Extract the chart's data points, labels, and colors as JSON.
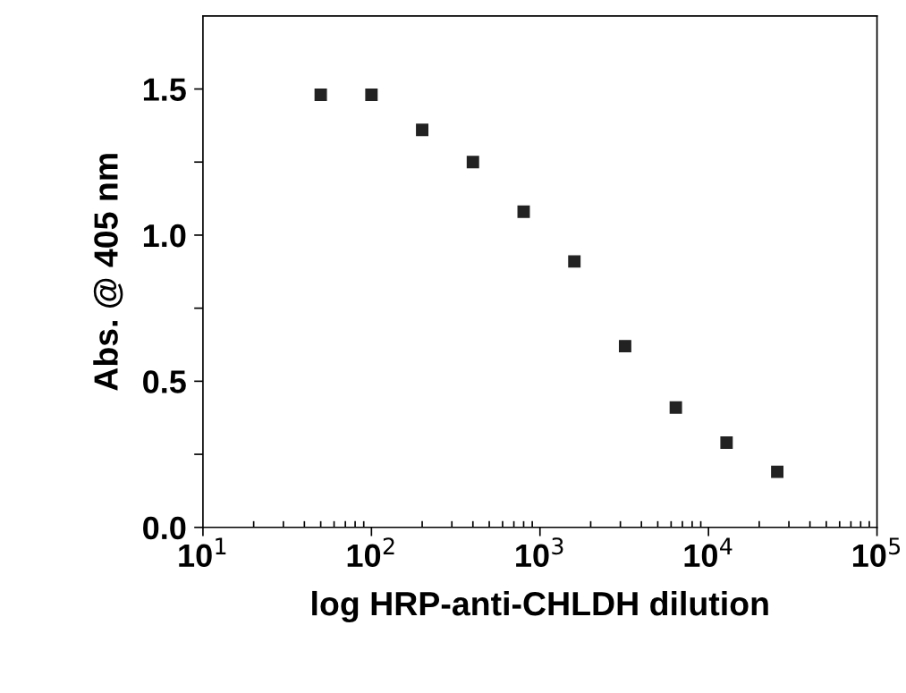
{
  "chart_data": {
    "type": "scatter",
    "xlabel": "log HRP-anti-CHLDH dilution",
    "ylabel": "Abs. @ 405 nm",
    "x": [
      50,
      100,
      200,
      400,
      800,
      1600,
      3200,
      6400,
      12800,
      25600
    ],
    "series": [
      {
        "color": "#222222",
        "values": [
          1.48,
          1.48,
          1.36,
          1.25,
          1.08,
          0.91,
          0.62,
          0.41,
          0.29,
          0.19
        ]
      }
    ],
    "log": "x",
    "marker": "square",
    "grid": false,
    "legend": false,
    "xlim": [
      10,
      100000
    ],
    "xticks": [
      {
        "value": 10,
        "label": "10$^{1}$"
      },
      {
        "value": 100,
        "label": "10$^{2}$"
      },
      {
        "value": 1000,
        "label": "10$^{3}$"
      },
      {
        "value": 10000,
        "label": "10$^{4}$"
      },
      {
        "value": 100000,
        "label": "10$^{5}$"
      }
    ],
    "ylim": [
      0,
      1.75
    ],
    "yticks": [
      {
        "value": 0,
        "label": "0.0"
      },
      {
        "value": 0.25,
        "label": null
      },
      {
        "value": 0.5,
        "label": "0.5"
      },
      {
        "value": 0.75,
        "label": null
      },
      {
        "value": 1.0,
        "label": "1.0"
      },
      {
        "value": 1.25,
        "label": null
      },
      {
        "value": 1.5,
        "label": "1.5"
      }
    ]
  }
}
